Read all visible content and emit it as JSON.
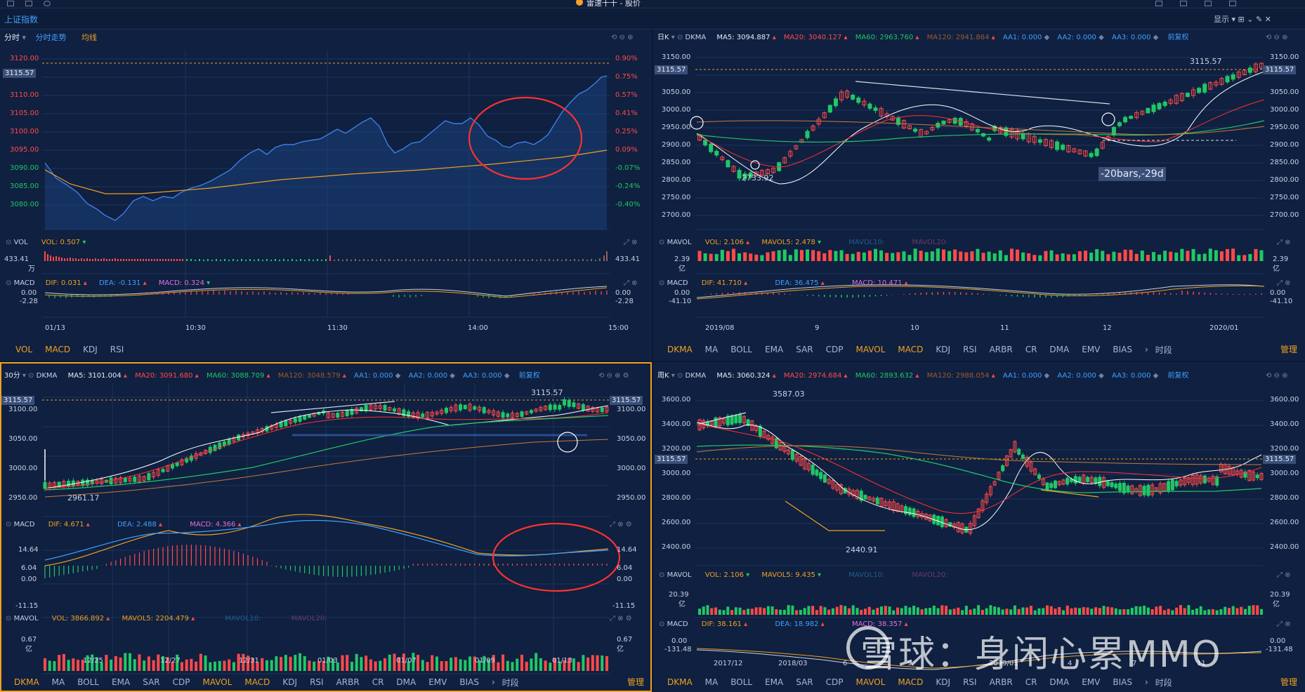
{
  "app": {
    "title": "雷速十十 - 股价"
  },
  "subbar": {
    "index_name": "上证指数",
    "display": "显示"
  },
  "p1": {
    "header": {
      "period": "分时",
      "trend": "分时走势",
      "avg": "均线"
    },
    "last_price": "3115.57",
    "left_ticks": [
      "3120.00",
      "3115.00",
      "3110.00",
      "3105.00",
      "3100.00",
      "3095.00",
      "3090.00",
      "3085.00",
      "3080.00"
    ],
    "right_ticks": [
      "0.90%",
      "0.75%",
      "0.57%",
      "0.41%",
      "0.25%",
      "0.09%",
      "-0.07%",
      "-0.24%",
      "-0.40%"
    ],
    "vol": {
      "name": "VOL",
      "value": "VOL: 0.507",
      "max_l": "433.41",
      "unit_l": "万",
      "max_r": "433.41"
    },
    "macd": {
      "name": "MACD",
      "dif": "DIF: 0.031",
      "dea": "DEA: -0.131",
      "macd": "MACD: 0.324",
      "t0": "0.00",
      "t1": "-2.28",
      "r0": "0.00",
      "r1": "-2.28"
    },
    "xaxis": [
      "01/13",
      "10:30",
      "11:30",
      "14:00",
      "15:00"
    ],
    "tabs": [
      "VOL",
      "MACD",
      "KDJ",
      "RSI"
    ]
  },
  "p2": {
    "header": {
      "period": "日K",
      "ma": "DKMA",
      "ma5": "MA5: 3094.887",
      "ma20": "MA20: 3040.127",
      "ma60": "MA60: 2963.760",
      "ma120": "MA120: 2941.864",
      "aa1": "AA1: 0.000",
      "aa2": "AA2: 0.000",
      "aa3": "AA3: 0.000",
      "adj": "前复权"
    },
    "last_price": "3115.57",
    "ticks": [
      "3150.00",
      "3100.00",
      "3050.00",
      "3000.00",
      "2950.00",
      "2900.00",
      "2850.00",
      "2800.00",
      "2750.00",
      "2700.00"
    ],
    "high_label": "3115.57",
    "low_label": "2733.92",
    "measure": "-20bars,-29d",
    "vol": {
      "name": "MAVOL",
      "vol": "VOL: 2.106",
      "mavol5": "MAVOL5: 2.478",
      "mavol10": "MAVOL10:",
      "mavol20": "MAVOL20:",
      "max": "2.39",
      "unit": "亿"
    },
    "macd": {
      "name": "MACD",
      "dif": "DIF: 41.710",
      "dea": "DEA: 36.475",
      "macd": "MACD: 10.471",
      "t0": "0.00",
      "t1": "-41.10"
    },
    "xaxis": [
      "2019/08",
      "9",
      "10",
      "11",
      "12",
      "2020/01"
    ],
    "tabs": [
      "DKMA",
      "MA",
      "BOLL",
      "EMA",
      "SAR",
      "CDP",
      "MAVOL",
      "MACD",
      "KDJ",
      "RSI",
      "ARBR",
      "CR",
      "DMA",
      "EMV",
      "BIAS",
      "时段"
    ],
    "manage": "管理"
  },
  "p3": {
    "header": {
      "period": "30分",
      "ma": "DKMA",
      "ma5": "MA5: 3101.004",
      "ma20": "MA20: 3091.680",
      "ma60": "MA60: 3088.709",
      "ma120": "MA120: 3048.579",
      "aa1": "AA1: 0.000",
      "aa2": "AA2: 0.000",
      "aa3": "AA3: 0.000",
      "adj": "前复权"
    },
    "last_price": "3115.57",
    "ticks": [
      "3100.00",
      "3050.00",
      "3000.00",
      "2950.00"
    ],
    "high_label": "3115.57",
    "low_label": "2961.17",
    "macd": {
      "name": "MACD",
      "dif": "DIF: 4.671",
      "dea": "DEA: 2.488",
      "macd": "MACD: 4.366",
      "ticks": [
        "14.64",
        "6.04",
        "0.00",
        "-11.15"
      ]
    },
    "vol": {
      "name": "MAVOL",
      "vol": "VOL: 3866.892",
      "mavol5": "MAVOL5: 2204.479",
      "mavol10": "MAVOL10:",
      "mavol20": "MAVOL20:",
      "max": "0.67",
      "unit": "亿"
    },
    "xaxis": [
      "12/25",
      "12/27",
      "12/31",
      "01/03",
      "01/07",
      "01/09",
      "01/13"
    ],
    "tabs": [
      "DKMA",
      "MA",
      "BOLL",
      "EMA",
      "SAR",
      "CDP",
      "MAVOL",
      "MACD",
      "KDJ",
      "RSI",
      "ARBR",
      "CR",
      "DMA",
      "EMV",
      "BIAS",
      "时段"
    ],
    "manage": "管理"
  },
  "p4": {
    "header": {
      "period": "周K",
      "ma": "DKMA",
      "ma5": "MA5: 3060.324",
      "ma20": "MA20: 2974.684",
      "ma60": "MA60: 2893.632",
      "ma120": "MA120: 2988.054",
      "aa1": "AA1: 0.000",
      "aa2": "AA2: 0.000",
      "aa3": "AA3: 0.000",
      "adj": "前复权"
    },
    "last_price": "3115.57",
    "ticks": [
      "3600.00",
      "3400.00",
      "3200.00",
      "3000.00",
      "2800.00",
      "2600.00",
      "2400.00"
    ],
    "high_label": "3587.03",
    "low_label": "2440.91",
    "vol": {
      "name": "MAVOL",
      "vol": "VOL: 2.106",
      "mavol5": "MAVOL5: 9.435",
      "mavol10": "MAVOL10:",
      "mavol20": "MAVOL20:",
      "max": "20.39",
      "unit": "亿"
    },
    "macd": {
      "name": "MACD",
      "dif": "DIF: 38.161",
      "dea": "DEA: 18.982",
      "macd": "MACD: 38.357",
      "t0": "0.00",
      "t1": "-131.48"
    },
    "xaxis": [
      "2017/12",
      "2018/03",
      "6",
      "9",
      "2019/01",
      "4",
      "7",
      "11"
    ],
    "tabs": [
      "DKMA",
      "MA",
      "BOLL",
      "EMA",
      "SAR",
      "CDP",
      "MAVOL",
      "MACD",
      "KDJ",
      "RSI",
      "ARBR",
      "CR",
      "DMA",
      "EMV",
      "BIAS",
      "时段"
    ],
    "manage": "管理"
  },
  "watermark": "雪球：身闲心累MMO",
  "colors": {
    "up": "#ff4a4a",
    "down": "#21c766",
    "bg": "#0f2040",
    "accent": "#f0a020",
    "price_line": "#3d7fe8"
  }
}
